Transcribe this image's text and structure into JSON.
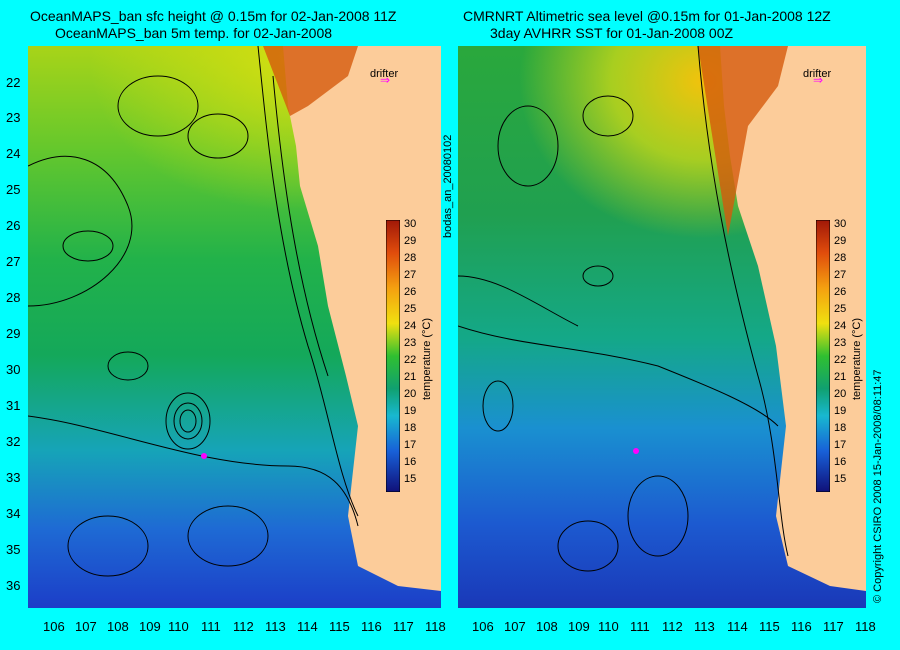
{
  "left": {
    "title_line1": "OceanMAPS_ban sfc height @ 0.15m for 02-Jan-2008 11Z",
    "title_line2": "OceanMAPS_ban 5m temp. for 02-Jan-2008",
    "drifter_label": "drifter"
  },
  "right": {
    "title_line1": "CMRNRT Altimetric sea level  @0.15m  for 01-Jan-2008 12Z",
    "title_line2": "3day AVHRR SST for 01-Jan-2008 00Z",
    "drifter_label": "drifter"
  },
  "y_ticks": [
    "22",
    "23",
    "24",
    "25",
    "26",
    "27",
    "28",
    "29",
    "30",
    "31",
    "32",
    "33",
    "34",
    "35",
    "36"
  ],
  "x_ticks": [
    "106",
    "107",
    "108",
    "109",
    "110",
    "111",
    "112",
    "113",
    "114",
    "115",
    "116",
    "117",
    "118"
  ],
  "colorbar": {
    "ticks": [
      "30",
      "29",
      "28",
      "27",
      "26",
      "25",
      "24",
      "23",
      "22",
      "21",
      "20",
      "19",
      "18",
      "17",
      "16",
      "15"
    ],
    "label": "temperature (°C)"
  },
  "side_text": {
    "run_id": "bodas_an_20080102",
    "copyright": "© Copyright CSIRO 2008   15-Jan-2008/08:11:47"
  },
  "colors": {
    "background": "#00ffff",
    "land": "#fccc9a",
    "drifter": "#ff00ff"
  }
}
